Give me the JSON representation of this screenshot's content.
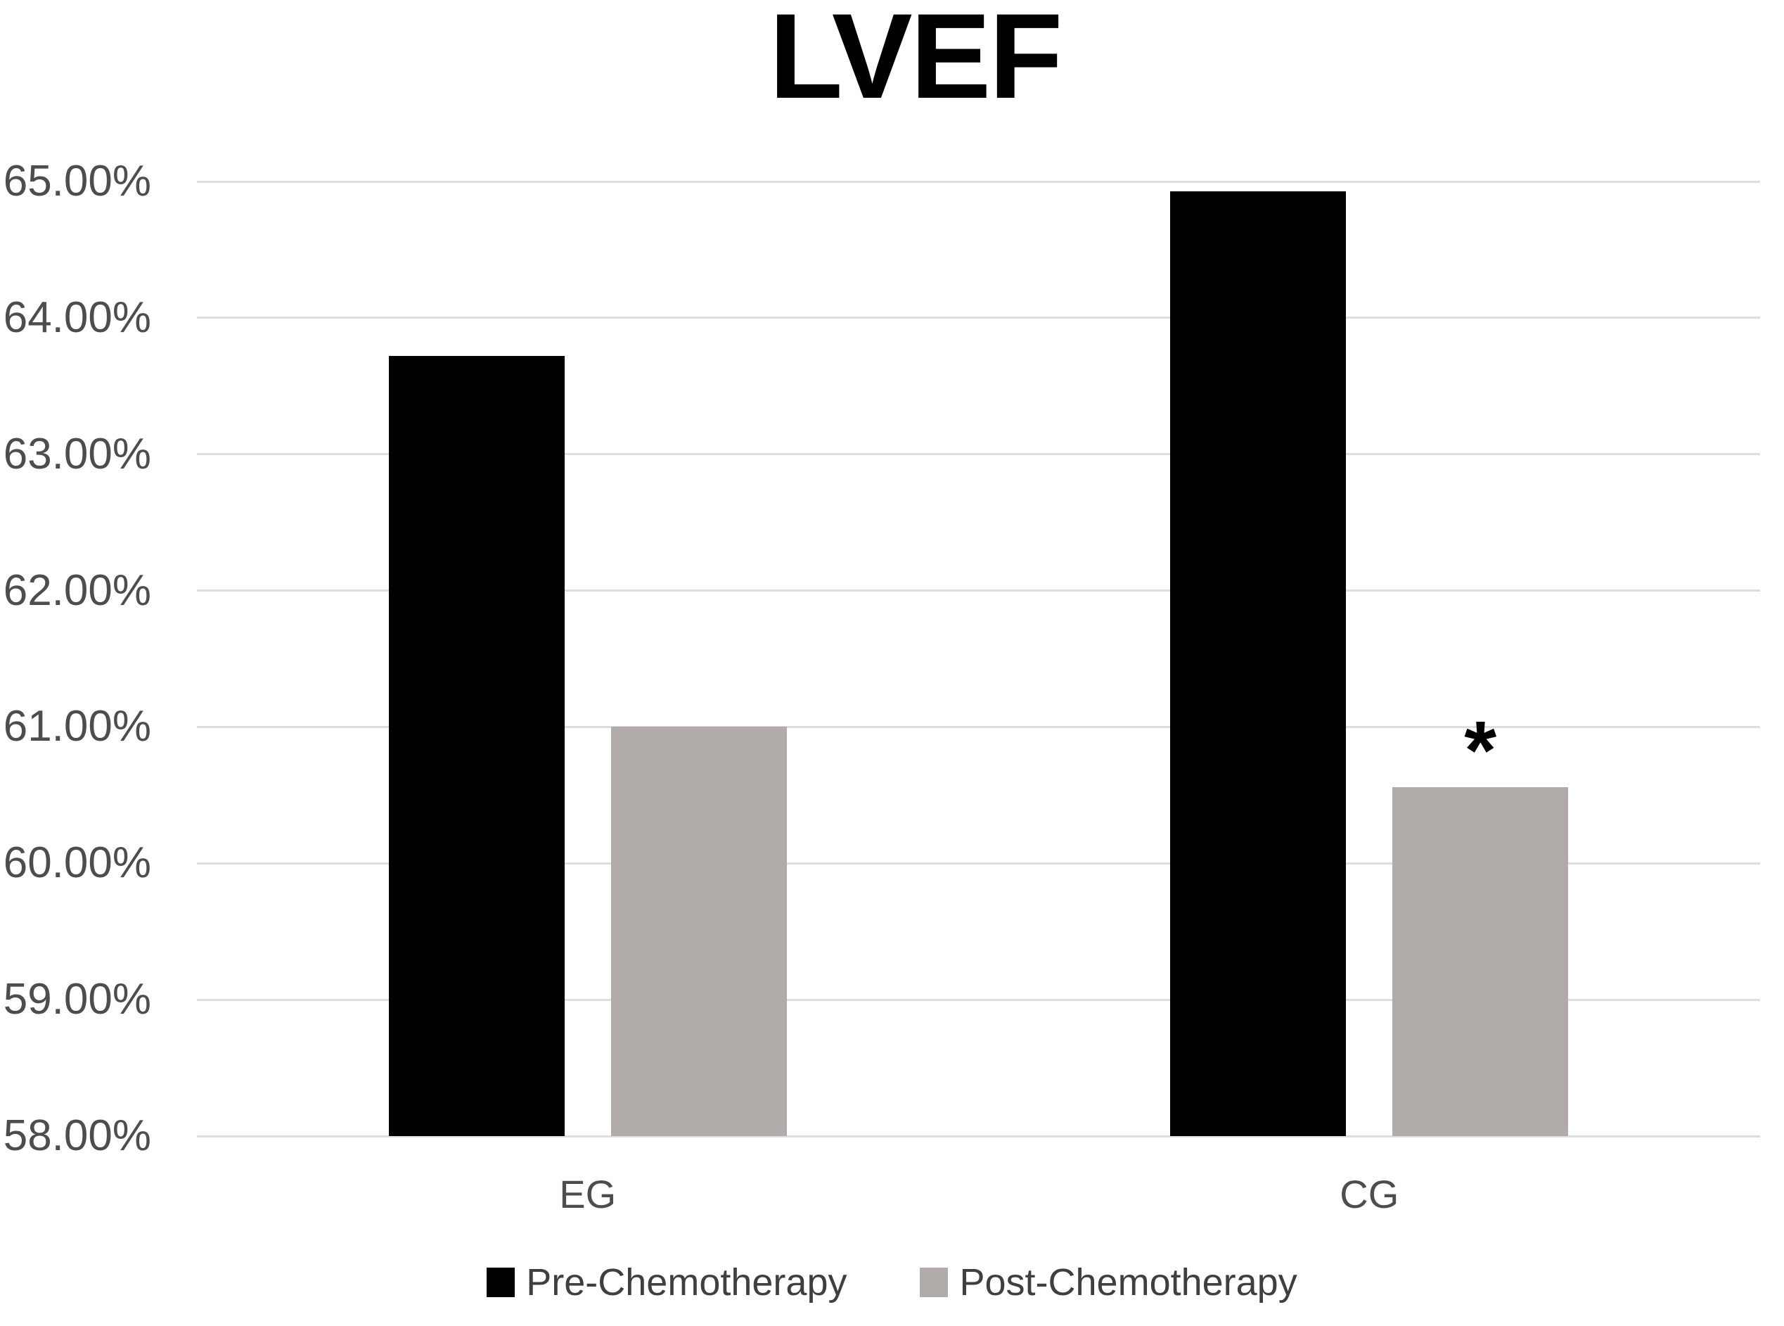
{
  "chart_data": {
    "type": "bar",
    "title": "LVEF",
    "categories": [
      "EG",
      "CG"
    ],
    "series": [
      {
        "name": "Pre-Chemotherapy",
        "color": "#000000",
        "values": [
          63.72,
          64.93
        ]
      },
      {
        "name": "Post-Chemotherapy",
        "color": "#b1aca9",
        "values": [
          61.0,
          60.56
        ]
      }
    ],
    "annotations": [
      {
        "text": "*",
        "category_index": 1,
        "series_index": 1,
        "meaning": "significance marker above CG Post-Chemotherapy bar"
      }
    ],
    "ylim": [
      58,
      65
    ],
    "y_tick_step": 1,
    "y_ticks": [
      "65.00%",
      "64.00%",
      "63.00%",
      "62.00%",
      "61.00%",
      "60.00%",
      "59.00%",
      "58.00%"
    ],
    "xlabel": "",
    "ylabel": "",
    "grid": true,
    "legend_position": "bottom",
    "gridline_color": "#dedede",
    "axis_label_color": "#4d4d4d",
    "legend_text_color": "#3f3f3f"
  }
}
